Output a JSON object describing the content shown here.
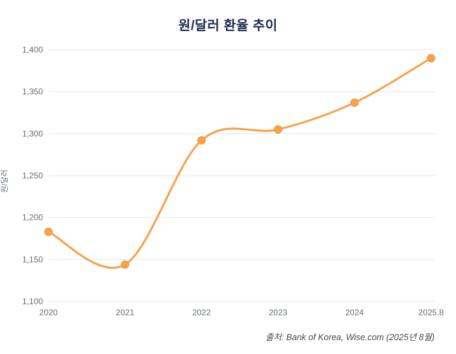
{
  "title": "원/달러 환율 추이",
  "source": "출처: Bank of Korea, Wise.com (2025년 8월)",
  "chart_data": {
    "type": "line",
    "title": "원/달러 환율 추이",
    "xlabel": "",
    "ylabel": "원/달러",
    "categories": [
      "2020",
      "2021",
      "2022",
      "2023",
      "2024",
      "2025.8"
    ],
    "values": [
      1183,
      1144,
      1292,
      1305,
      1337,
      1390
    ],
    "series": [
      {
        "name": "원/달러 환율",
        "values": [
          1183,
          1144,
          1292,
          1305,
          1337,
          1390
        ]
      }
    ],
    "ylim": [
      1100,
      1400
    ],
    "ytick_step": 50,
    "ytick_labels": [
      "1,100",
      "1,150",
      "1,200",
      "1,250",
      "1,300",
      "1,350",
      "1,400"
    ],
    "grid": true,
    "legend_position": "none",
    "smooth": true,
    "colors": {
      "line": "#f8a24c",
      "marker_fill": "#f8a24c",
      "marker_stroke": "#ef9238",
      "grid": "#e4e7eb",
      "tick_text": "#666e78",
      "title_text": "#1d2b50"
    }
  }
}
